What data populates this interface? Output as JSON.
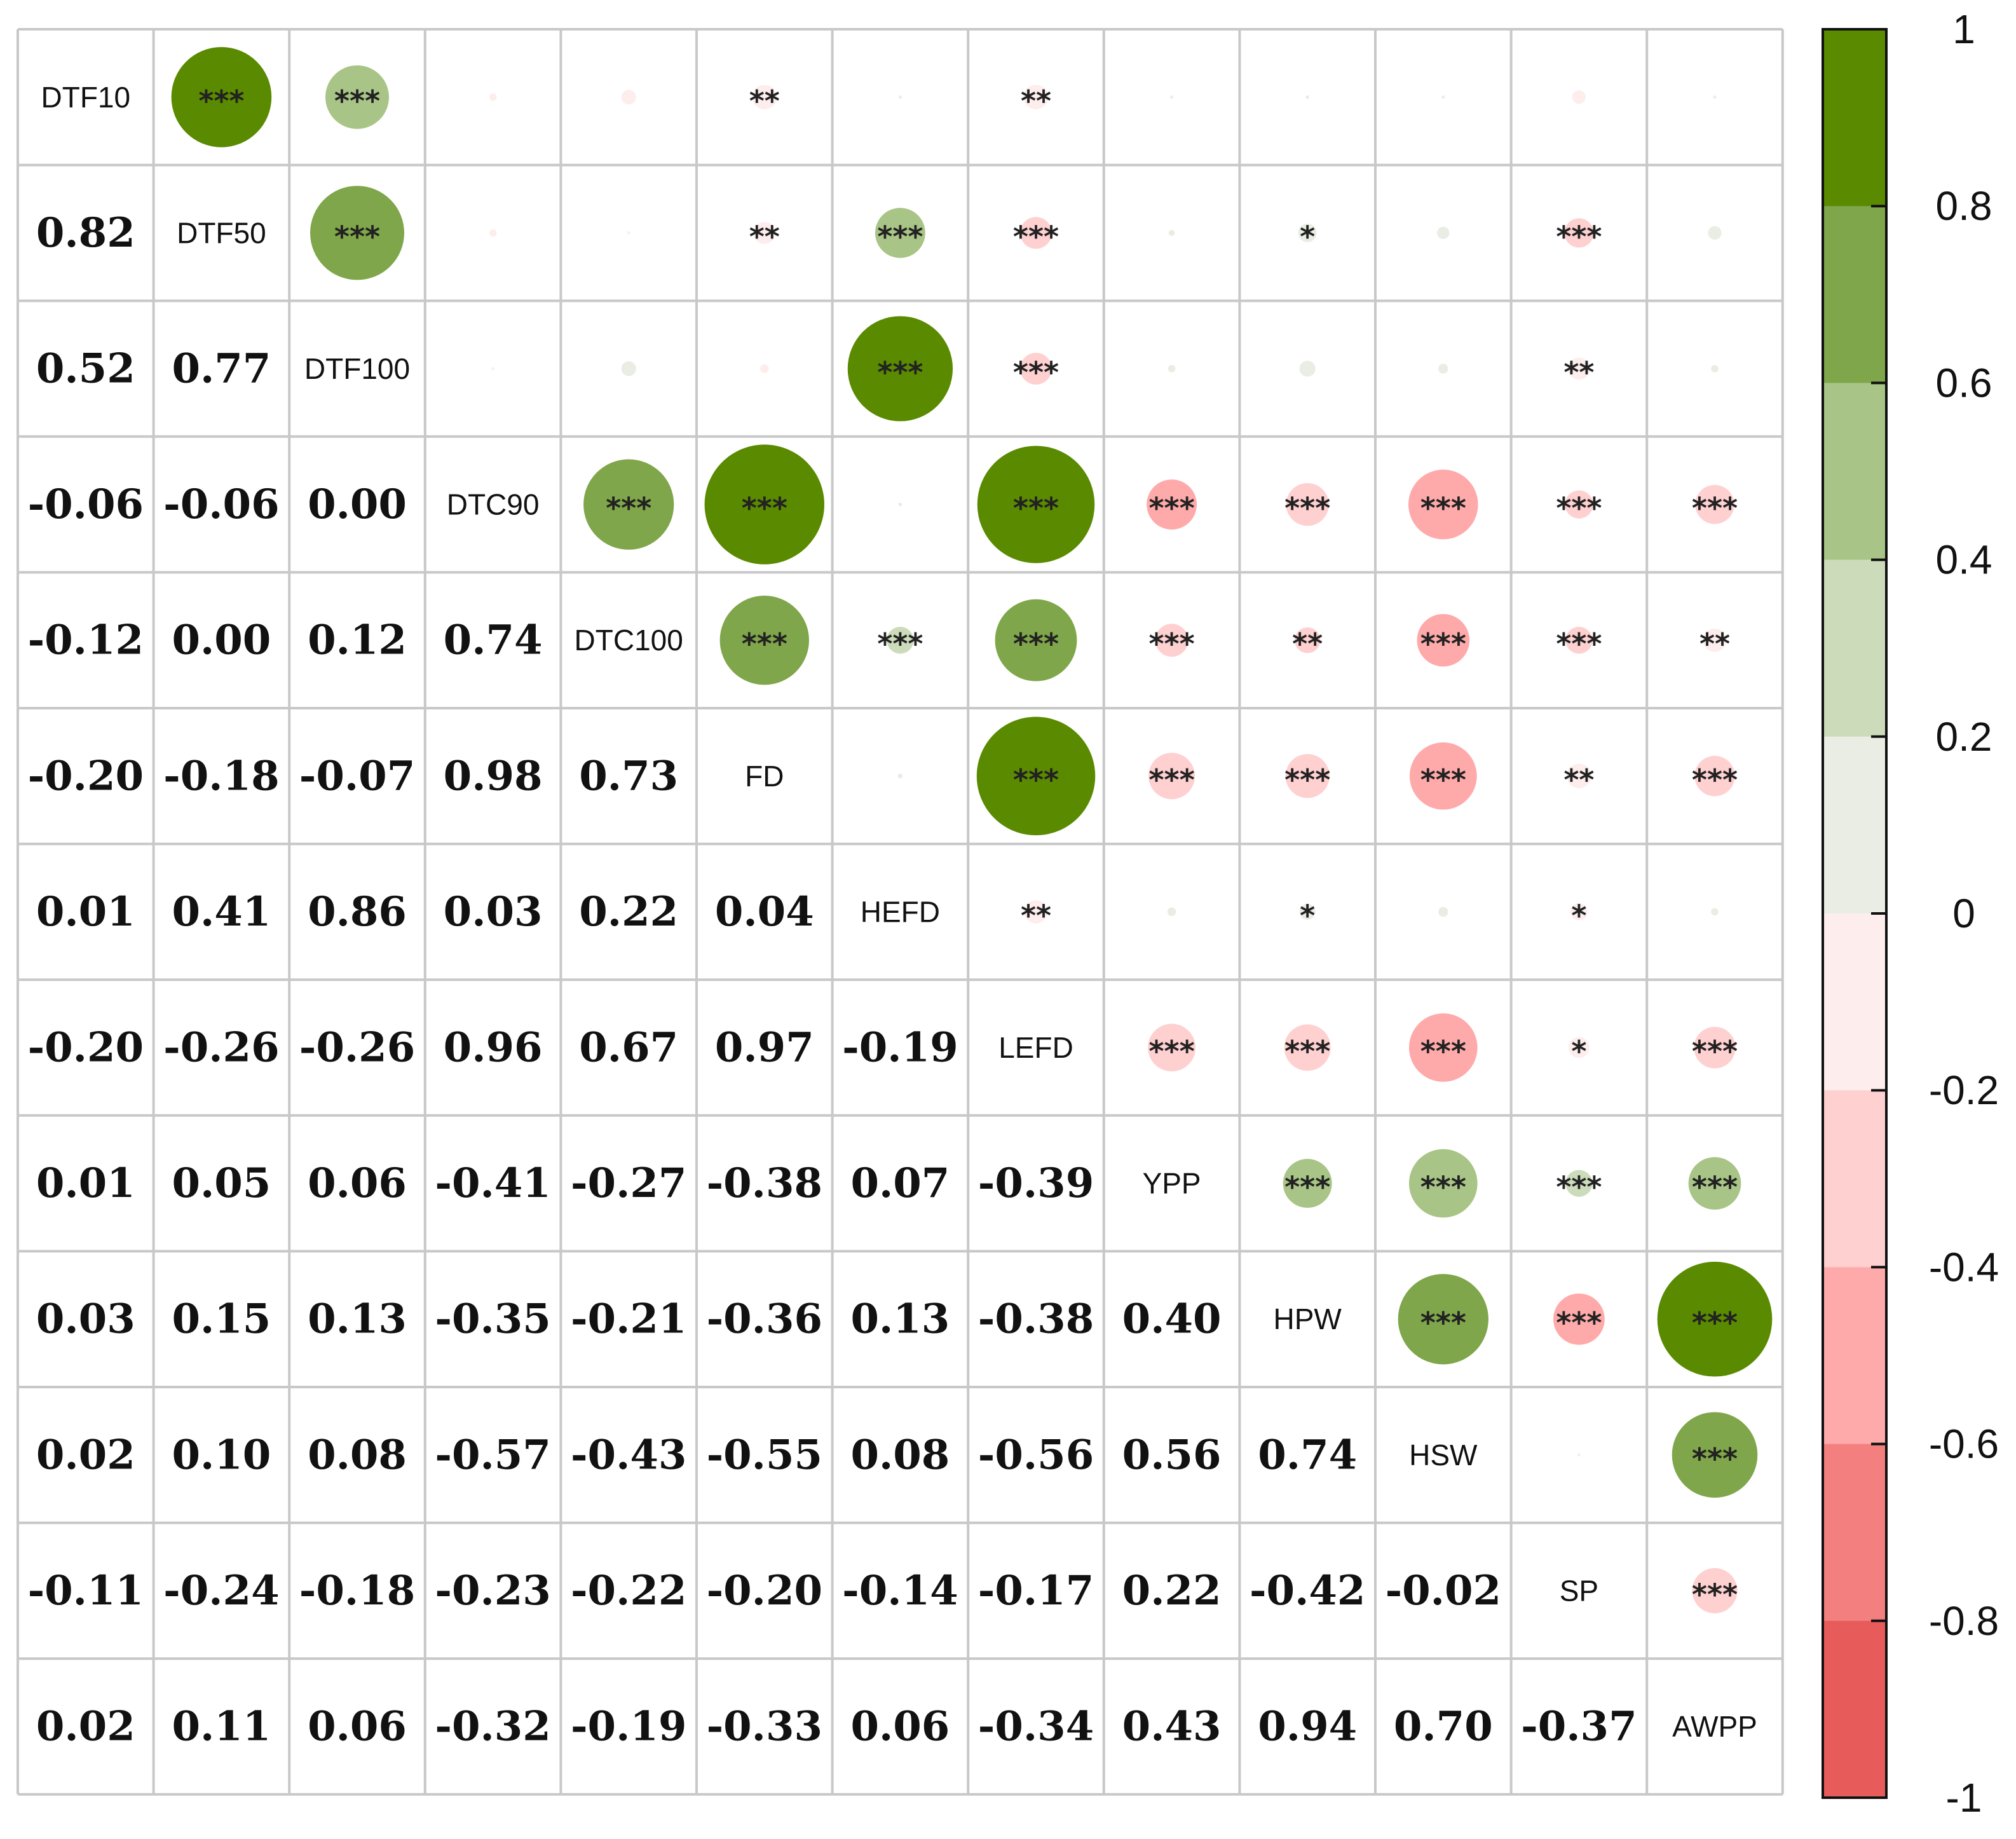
{
  "chart_data": {
    "type": "heatmap",
    "subtype": "correlation-matrix (mixed: circles upper, numbers lower)",
    "variables": [
      "DTF10",
      "DTF50",
      "DTF100",
      "DTC90",
      "DTC100",
      "FD",
      "HEFD",
      "LEFD",
      "YPP",
      "HPW",
      "HSW",
      "SP",
      "AWPP"
    ],
    "correlations": [
      [
        1.0,
        0.82,
        0.52,
        -0.06,
        -0.12,
        -0.2,
        0.01,
        -0.2,
        0.01,
        0.03,
        0.02,
        -0.11,
        0.02
      ],
      [
        0.82,
        1.0,
        0.77,
        -0.06,
        0.0,
        -0.18,
        0.41,
        -0.26,
        0.05,
        0.15,
        0.1,
        -0.24,
        0.11
      ],
      [
        0.52,
        0.77,
        1.0,
        0.0,
        0.12,
        -0.07,
        0.86,
        -0.26,
        0.06,
        0.13,
        0.08,
        -0.18,
        0.06
      ],
      [
        -0.06,
        -0.06,
        0.0,
        1.0,
        0.74,
        0.98,
        0.03,
        0.96,
        -0.41,
        -0.35,
        -0.57,
        -0.23,
        -0.32
      ],
      [
        -0.12,
        0.0,
        0.12,
        0.74,
        1.0,
        0.73,
        0.22,
        0.67,
        -0.27,
        -0.21,
        -0.43,
        -0.22,
        -0.19
      ],
      [
        -0.2,
        -0.18,
        -0.07,
        0.98,
        0.73,
        1.0,
        0.04,
        0.97,
        -0.38,
        -0.36,
        -0.55,
        -0.2,
        -0.33
      ],
      [
        0.01,
        0.41,
        0.86,
        0.03,
        0.22,
        0.04,
        1.0,
        -0.19,
        0.07,
        0.13,
        0.08,
        -0.14,
        0.06
      ],
      [
        -0.2,
        -0.26,
        -0.26,
        0.96,
        0.67,
        0.97,
        -0.19,
        1.0,
        -0.39,
        -0.38,
        -0.56,
        -0.17,
        -0.34
      ],
      [
        0.01,
        0.05,
        0.06,
        -0.41,
        -0.27,
        -0.38,
        0.07,
        -0.39,
        1.0,
        0.4,
        0.56,
        0.22,
        0.43
      ],
      [
        0.03,
        0.15,
        0.13,
        -0.35,
        -0.21,
        -0.36,
        0.13,
        -0.38,
        0.4,
        1.0,
        0.74,
        -0.42,
        0.94
      ],
      [
        0.02,
        0.1,
        0.08,
        -0.57,
        -0.43,
        -0.55,
        0.08,
        -0.56,
        0.56,
        0.74,
        1.0,
        -0.02,
        0.7
      ],
      [
        -0.11,
        -0.24,
        -0.18,
        -0.23,
        -0.22,
        -0.2,
        -0.14,
        -0.17,
        0.22,
        -0.42,
        -0.02,
        1.0,
        -0.37
      ],
      [
        0.02,
        0.11,
        0.06,
        -0.32,
        -0.19,
        -0.33,
        0.06,
        -0.34,
        0.43,
        0.94,
        0.7,
        -0.37,
        1.0
      ]
    ],
    "upper_significance": [
      [
        "",
        "***",
        "***",
        "",
        "",
        "**",
        "",
        "**",
        "",
        "",
        "",
        "",
        ""
      ],
      [
        "",
        "",
        "***",
        "",
        "",
        "**",
        "***",
        "***",
        "",
        "*",
        "",
        "***",
        ""
      ],
      [
        "",
        "",
        "",
        "",
        "",
        "",
        "***",
        "***",
        "",
        "",
        "",
        "**",
        ""
      ],
      [
        "",
        "",
        "",
        "",
        "***",
        "***",
        "",
        "***",
        "***",
        "***",
        "***",
        "***",
        "***"
      ],
      [
        "",
        "",
        "",
        "",
        "",
        "***",
        "***",
        "***",
        "***",
        "**",
        "***",
        "***",
        "**"
      ],
      [
        "",
        "",
        "",
        "",
        "",
        "",
        "",
        "***",
        "***",
        "***",
        "***",
        "**",
        "***"
      ],
      [
        "",
        "",
        "",
        "",
        "",
        "",
        "",
        "**",
        "",
        "*",
        "",
        "*",
        ""
      ],
      [
        "",
        "",
        "",
        "",
        "",
        "",
        "",
        "",
        "***",
        "***",
        "***",
        "*",
        "***"
      ],
      [
        "",
        "",
        "",
        "",
        "",
        "",
        "",
        "",
        "",
        "***",
        "***",
        "***",
        "***"
      ],
      [
        "",
        "",
        "",
        "",
        "",
        "",
        "",
        "",
        "",
        "",
        "***",
        "***",
        "***"
      ],
      [
        "",
        "",
        "",
        "",
        "",
        "",
        "",
        "",
        "",
        "",
        "",
        "",
        "***"
      ],
      [
        "",
        "",
        "",
        "",
        "",
        "",
        "",
        "",
        "",
        "",
        "",
        "",
        "***"
      ],
      [
        "",
        "",
        "",
        "",
        "",
        "",
        "",
        "",
        "",
        "",
        "",
        "",
        ""
      ]
    ],
    "legend": {
      "position": "right",
      "ticks": [
        "1",
        "0.8",
        "0.6",
        "0.4",
        "0.2",
        "0",
        "-0.2",
        "-0.4",
        "-0.6",
        "-0.8",
        "-1"
      ],
      "range": [
        -1,
        1
      ],
      "bin_colors_top_to_bottom": [
        "#5a8a00",
        "#7fa64a",
        "#a8c486",
        "#ccdcbb",
        "#e9ede3",
        "#fdeded",
        "#ffd0d0",
        "#ffaaaa",
        "#f47f7f",
        "#e85b5b"
      ]
    },
    "colors": {
      "grid": "#c8c8c8",
      "background": "#ffffff"
    },
    "grid": true
  }
}
